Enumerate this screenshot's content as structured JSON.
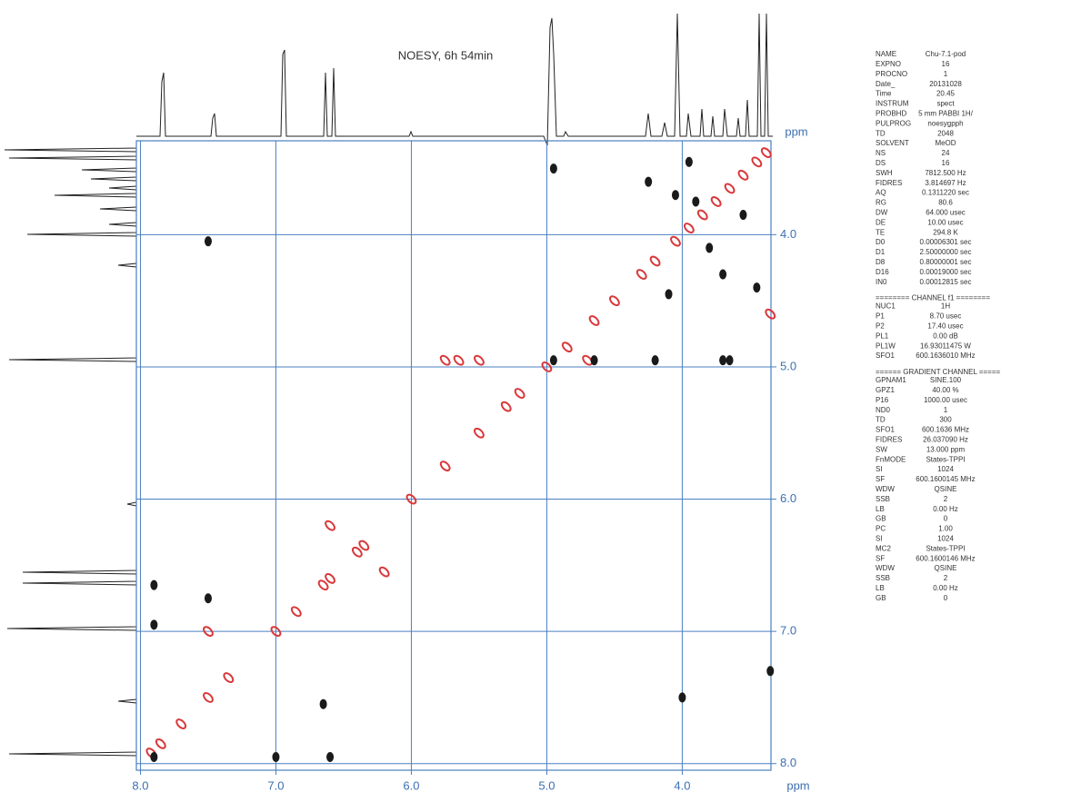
{
  "chart_data": {
    "type": "scatter",
    "title": "NOESY, 6h 54min",
    "x_label": "ppm",
    "y_label": "ppm",
    "xlim": [
      8.03,
      3.345
    ],
    "ylim": [
      3.29,
      8.05
    ],
    "xticks": [
      {
        "value": 8,
        "label": "8.0"
      },
      {
        "value": 7,
        "label": "7.0"
      },
      {
        "value": 6,
        "label": "6.0"
      },
      {
        "value": 5,
        "label": "5.0"
      },
      {
        "value": 4,
        "label": "4.0"
      }
    ],
    "yticks": [
      {
        "value": 4,
        "label": "4.0"
      },
      {
        "value": 5,
        "label": "5.0"
      },
      {
        "value": 6,
        "label": "6.0"
      },
      {
        "value": 7,
        "label": "7.0"
      },
      {
        "value": 8,
        "label": "8.0"
      }
    ],
    "grid": true,
    "grid_color": "#4a7fc1",
    "series": [
      {
        "color": "#d9383a",
        "x": [
          7.92,
          7.85,
          7.7,
          7.5,
          7.35,
          7.0,
          6.85,
          6.65,
          6.6,
          6.4,
          6.35,
          6.0,
          5.75,
          5.5,
          5.3,
          5.2,
          5.0,
          4.85,
          4.65,
          4.5,
          4.3,
          4.2,
          4.05,
          3.95,
          3.85,
          3.75,
          3.65,
          3.55,
          3.45,
          3.38,
          5.75,
          5.65,
          5.5,
          4.7,
          6.6,
          6.2,
          7.5,
          3.35
        ],
        "y": [
          7.92,
          7.85,
          7.7,
          7.5,
          7.35,
          7.0,
          6.85,
          6.65,
          6.6,
          6.4,
          6.35,
          6.0,
          5.75,
          5.5,
          5.3,
          5.2,
          5.0,
          4.85,
          4.65,
          4.5,
          4.3,
          4.2,
          4.05,
          3.95,
          3.85,
          3.75,
          3.65,
          3.55,
          3.45,
          3.38,
          4.95,
          4.95,
          4.95,
          4.95,
          6.2,
          6.55,
          7.0,
          4.6
        ]
      },
      {
        "color": "#1a1a1a",
        "x": [
          7.9,
          7.9,
          7.5,
          6.65,
          7.0,
          6.6,
          7.9,
          7.5,
          4.95,
          4.95,
          4.65,
          4.2,
          3.7,
          3.65,
          4.0,
          3.35,
          4.25,
          4.05,
          3.9,
          3.7,
          3.8,
          4.1,
          3.95,
          3.55,
          3.45
        ],
        "y": [
          6.65,
          6.95,
          6.75,
          7.55,
          7.95,
          7.95,
          7.95,
          4.05,
          3.5,
          4.95,
          4.95,
          4.95,
          4.95,
          4.95,
          7.5,
          7.3,
          3.6,
          3.7,
          3.75,
          4.3,
          4.1,
          4.45,
          3.45,
          3.85,
          4.4
        ]
      }
    ]
  },
  "parameters": [
    [
      "NAME",
      "Chu-7.1-pod"
    ],
    [
      "EXPNO",
      "16"
    ],
    [
      "PROCNO",
      "1"
    ],
    [
      "Date_",
      "20131028"
    ],
    [
      "Time",
      "20.45"
    ],
    [
      "INSTRUM",
      "spect"
    ],
    [
      "PROBHD",
      "5 mm PABBI 1H/"
    ],
    [
      "PULPROG",
      "noesygpph"
    ],
    [
      "TD",
      "2048"
    ],
    [
      "SOLVENT",
      "MeOD"
    ],
    [
      "NS",
      "24"
    ],
    [
      "DS",
      "16"
    ],
    [
      "SWH",
      "7812.500 Hz"
    ],
    [
      "FIDRES",
      "3.814697 Hz"
    ],
    [
      "AQ",
      "0.1311220 sec"
    ],
    [
      "RG",
      "80.6"
    ],
    [
      "DW",
      "64.000 usec"
    ],
    [
      "DE",
      "10.00 usec"
    ],
    [
      "TE",
      "294.8 K"
    ],
    [
      "D0",
      "0.00006301 sec"
    ],
    [
      "D1",
      "2.50000000 sec"
    ],
    [
      "D8",
      "0.80000001 sec"
    ],
    [
      "D16",
      "0.00019000 sec"
    ],
    [
      "IN0",
      "0.00012815 sec"
    ],
    [
      "======== CHANNEL f1 ========"
    ],
    [
      "NUC1",
      "1H"
    ],
    [
      "P1",
      "8.70 usec"
    ],
    [
      "P2",
      "17.40 usec"
    ],
    [
      "PL1",
      "0.00 dB"
    ],
    [
      "PL1W",
      "16.93011475 W"
    ],
    [
      "SFO1",
      "600.1636010 MHz"
    ],
    [
      "====== GRADIENT CHANNEL ====="
    ],
    [
      "GPNAM1",
      "SINE.100"
    ],
    [
      "GPZ1",
      "40.00 %"
    ],
    [
      "P16",
      "1000.00 usec"
    ],
    [
      "ND0",
      "1"
    ],
    [
      "TD",
      "300"
    ],
    [
      "SFO1",
      "600.1636 MHz"
    ],
    [
      "FIDRES",
      "26.037090 Hz"
    ],
    [
      "SW",
      "13.000 ppm"
    ],
    [
      "FnMODE",
      "States-TPPI"
    ],
    [
      "SI",
      "1024"
    ],
    [
      "SF",
      "600.1600145 MHz"
    ],
    [
      "WDW",
      "QSINE"
    ],
    [
      "SSB",
      "2"
    ],
    [
      "LB",
      "0.00 Hz"
    ],
    [
      "GB",
      "0"
    ],
    [
      "PC",
      "1.00"
    ],
    [
      "SI",
      "1024"
    ],
    [
      "MC2",
      "States-TPPI"
    ],
    [
      "SF",
      "600.1600146 MHz"
    ],
    [
      "WDW",
      "QSINE"
    ],
    [
      "SSB",
      "2"
    ],
    [
      "LB",
      "0.00 Hz"
    ],
    [
      "GB",
      "0"
    ]
  ]
}
